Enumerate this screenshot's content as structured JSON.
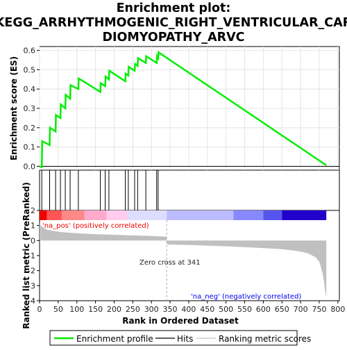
{
  "chart_data": {
    "type": "line",
    "title_lines": [
      "Enrichment plot:",
      "KEGG_ARRHYTHMOGENIC_RIGHT_VENTRICULAR_CAR",
      "DIOMYOPATHY_ARVC"
    ],
    "es_panel": {
      "ylabel": "Enrichment score (ES)",
      "ylim": [
        -0.02,
        0.62
      ],
      "yticks": [
        0.0,
        0.1,
        0.2,
        0.3,
        0.4,
        0.5,
        0.6
      ],
      "ytick_labels": [
        "0.0",
        "0.1",
        "0.2",
        "0.3",
        "0.4",
        "0.5",
        "0.6"
      ],
      "series_name": "Enrichment profile",
      "color": "#00ee00",
      "x": [
        0,
        6,
        7,
        27,
        28,
        43,
        44,
        56,
        57,
        69,
        70,
        82,
        83,
        104,
        105,
        163,
        164,
        176,
        177,
        186,
        187,
        230,
        231,
        238,
        239,
        255,
        256,
        263,
        264,
        285,
        286,
        314,
        315,
        318,
        319,
        769
      ],
      "y": [
        0.0,
        -0.005,
        0.13,
        0.11,
        0.2,
        0.18,
        0.265,
        0.25,
        0.32,
        0.3,
        0.37,
        0.35,
        0.42,
        0.4,
        0.455,
        0.385,
        0.43,
        0.415,
        0.465,
        0.45,
        0.495,
        0.44,
        0.48,
        0.47,
        0.515,
        0.495,
        0.53,
        0.52,
        0.56,
        0.535,
        0.57,
        0.535,
        0.57,
        0.56,
        0.59,
        0.005
      ]
    },
    "hits": {
      "label": "Hits",
      "positions": [
        6,
        27,
        43,
        56,
        69,
        82,
        104,
        163,
        176,
        186,
        230,
        238,
        255,
        263,
        285,
        314,
        318
      ]
    },
    "heatmap_bar": {
      "colors": [
        "#ee0000",
        "#ff5555",
        "#ff8888",
        "#ffaacc",
        "#ffccee",
        "#ddddff",
        "#bbbbff",
        "#8888ff",
        "#5555ee",
        "#2200cc"
      ],
      "boundaries": [
        0,
        20,
        60,
        120,
        180,
        235,
        341,
        520,
        600,
        650,
        750,
        769
      ]
    },
    "metric_panel": {
      "ylabel": "Ranked list metric (PreRanked)",
      "ylim": [
        -4,
        2
      ],
      "yticks": [
        2,
        1,
        0,
        -1,
        -2,
        -3,
        -4
      ],
      "ytick_labels": [
        "2",
        "1",
        "0",
        "-1",
        "-2",
        "-3",
        "-4"
      ],
      "series_name": "Ranking metric scores",
      "color": "#c0c0c0",
      "x": [
        0,
        2,
        5,
        10,
        20,
        40,
        60,
        100,
        150,
        200,
        250,
        300,
        340,
        341,
        342,
        400,
        450,
        500,
        550,
        600,
        650,
        680,
        700,
        720,
        740,
        750,
        755,
        760,
        763,
        766,
        769
      ],
      "y": [
        1.15,
        1.05,
        0.95,
        0.85,
        0.72,
        0.62,
        0.56,
        0.48,
        0.42,
        0.38,
        0.34,
        0.3,
        0.26,
        0.0,
        -0.26,
        -0.3,
        -0.34,
        -0.38,
        -0.44,
        -0.5,
        -0.58,
        -0.66,
        -0.74,
        -0.86,
        -1.1,
        -1.4,
        -1.8,
        -2.3,
        -2.8,
        -3.4,
        -3.75
      ]
    },
    "annotations": {
      "pos": "'na_pos' (positively correlated)",
      "neg": "'na_neg' (negatively correlated)",
      "zero_cross": "Zero cross at 341",
      "zero_cross_x": 341,
      "pos_color": "#ee0000",
      "neg_color": "#0000ee"
    },
    "x_axis": {
      "label": "Rank in Ordered Dataset",
      "xlim": [
        0,
        804
      ],
      "xticks": [
        0,
        50,
        100,
        150,
        200,
        250,
        300,
        350,
        400,
        450,
        500,
        550,
        600,
        650,
        700,
        750,
        800
      ],
      "xtick_labels": [
        "0",
        "50",
        "100",
        "150",
        "200",
        "250",
        "300",
        "350",
        "400",
        "450",
        "500",
        "550",
        "600",
        "650",
        "700",
        "750",
        "800"
      ]
    },
    "legend": {
      "placement": "bottom",
      "items": [
        "Enrichment profile",
        "Hits",
        "Ranking metric scores"
      ]
    }
  }
}
